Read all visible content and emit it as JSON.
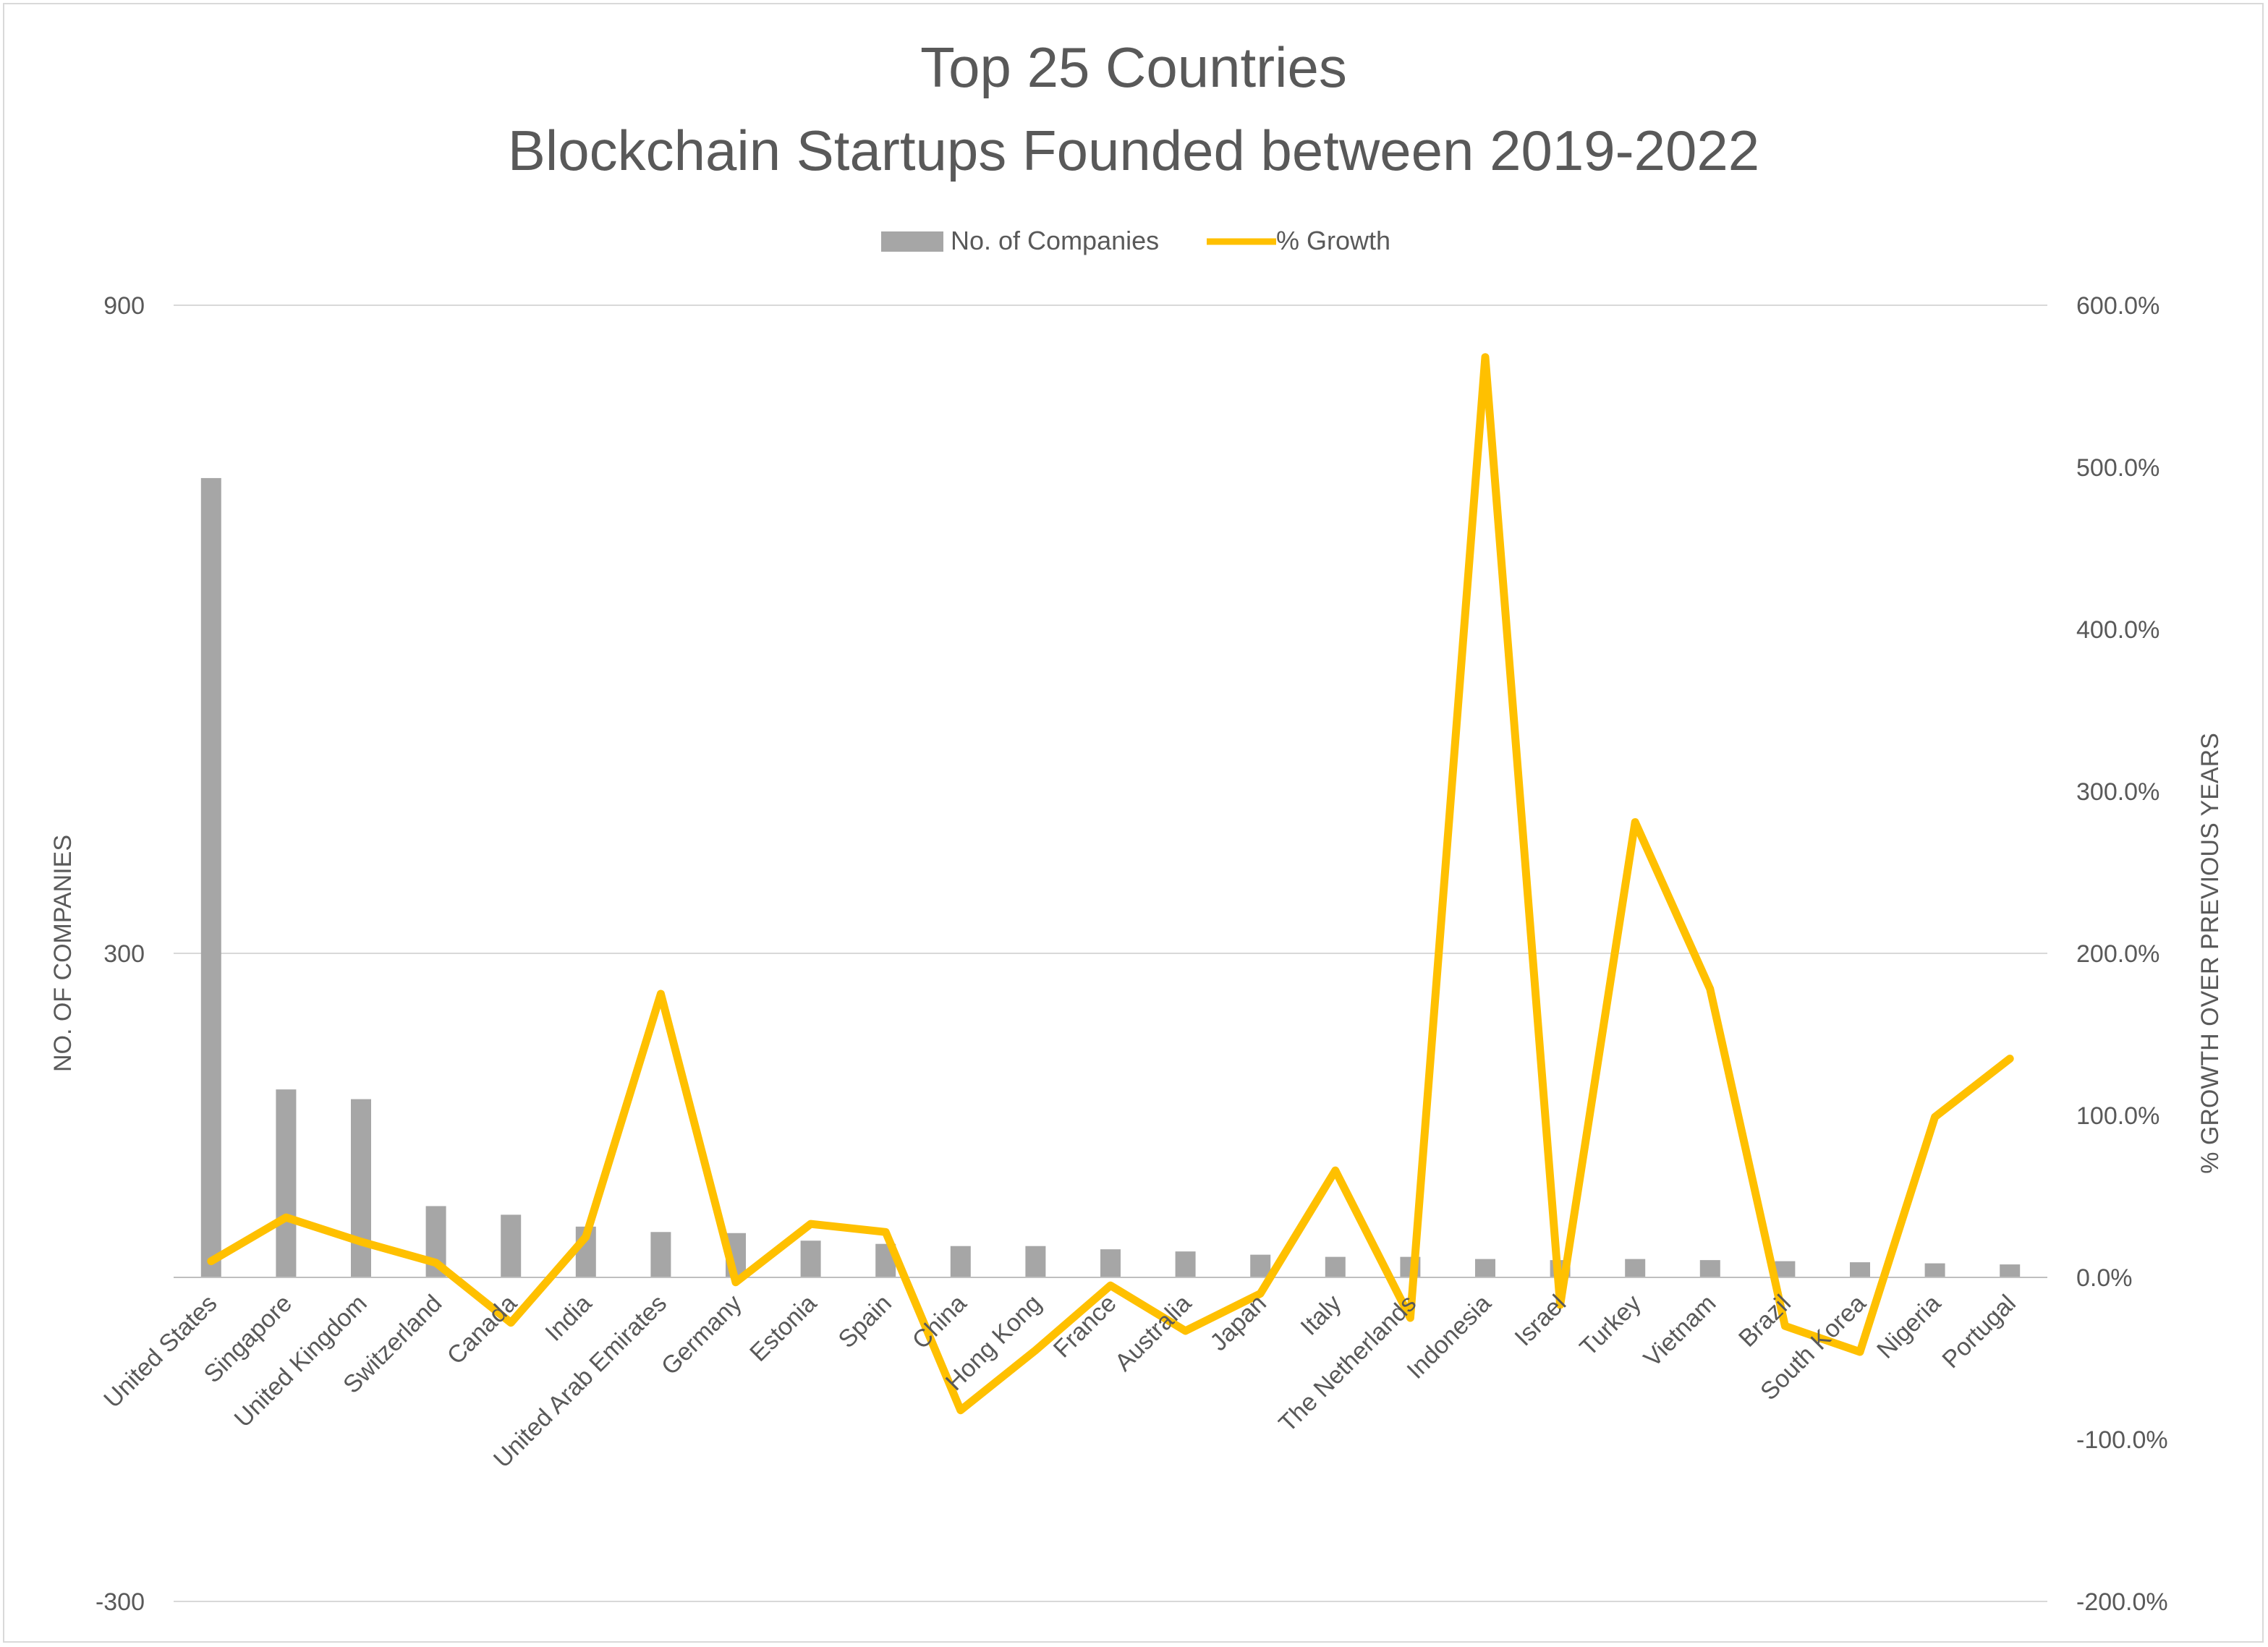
{
  "chart_data": {
    "type": "bar",
    "title_lines": [
      "Top 25 Countries",
      "Blockchain Startups Founded between 2019-2022"
    ],
    "ylabel": "NO. OF COMPANIES",
    "y2label": "% GROWTH OVER PREVIOUS YEARS",
    "ylim": [
      -300,
      900
    ],
    "y2lim": [
      -200,
      600
    ],
    "yticks": [
      {
        "value": 900,
        "label": "900"
      },
      {
        "value": 300,
        "label": "300"
      },
      {
        "value": -300,
        "label": "-300"
      }
    ],
    "y2ticks": [
      {
        "value": 600,
        "label": "600.0%"
      },
      {
        "value": 500,
        "label": "500.0%"
      },
      {
        "value": 400,
        "label": "400.0%"
      },
      {
        "value": 300,
        "label": "300.0%"
      },
      {
        "value": 200,
        "label": "200.0%"
      },
      {
        "value": 100,
        "label": "100.0%"
      },
      {
        "value": 0,
        "label": "0.0%"
      },
      {
        "value": -100,
        "label": "-100.0%"
      },
      {
        "value": -200,
        "label": "-200.0%"
      }
    ],
    "legend": {
      "position": "top"
    },
    "categories": [
      "United States",
      "Singapore",
      "United Kingdom",
      "Switzerland",
      "Canada",
      "India",
      "United Arab Emirates",
      "Germany",
      "Estonia",
      "Spain",
      "China",
      "Hong Kong",
      "France",
      "Australia",
      "Japan",
      "Italy",
      "The Netherlands",
      "Indonesia",
      "Israel",
      "Turkey",
      "Vietnam",
      "Brazil",
      "South Korea",
      "Nigeria",
      "Portugal"
    ],
    "series": [
      {
        "name": "No. of Companies",
        "type": "bar",
        "axis": "left",
        "color": "#a6a6a6",
        "values": [
          740,
          174,
          165,
          66,
          58,
          47,
          42,
          41,
          34,
          31,
          29,
          29,
          26,
          24,
          21,
          19,
          19,
          17,
          16,
          17,
          16,
          15,
          14,
          13,
          12
        ]
      },
      {
        "name": "% Growth",
        "type": "line",
        "axis": "right",
        "color": "#ffc000",
        "values": [
          10,
          37,
          22,
          9,
          -28,
          25,
          175,
          -3,
          33,
          28,
          -82,
          -45,
          -5,
          -33,
          -10,
          66,
          -25,
          568,
          -17,
          281,
          178,
          -30,
          -46,
          99,
          135
        ]
      }
    ]
  }
}
